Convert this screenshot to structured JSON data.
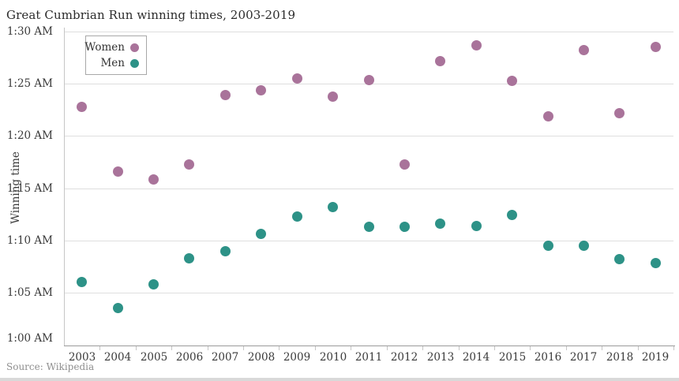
{
  "header": {
    "title": "Great Cumbrian Run winning times, 2003-2019"
  },
  "footer": {
    "source": "Source: Wikipedia"
  },
  "colors": {
    "women": "#a9739a",
    "men": "#2d9287",
    "gridline": "#dedede",
    "axis": "#9b9b9b"
  },
  "chart_data": {
    "type": "scatter",
    "title": "Great Cumbrian Run winning times, 2003-2019",
    "xlabel": "",
    "ylabel": "Winning time",
    "grid": "horizontal",
    "legend_position": "top-left",
    "x": [
      2003,
      2004,
      2005,
      2006,
      2007,
      2008,
      2009,
      2010,
      2011,
      2012,
      2013,
      2014,
      2015,
      2016,
      2017,
      2018,
      2019
    ],
    "ylim_minutes": [
      60,
      90
    ],
    "yticks": [
      {
        "value": 60,
        "label": "1:00 AM"
      },
      {
        "value": 65,
        "label": "1:05 AM"
      },
      {
        "value": 70,
        "label": "1:10 AM"
      },
      {
        "value": 75,
        "label": "1:15 AM"
      },
      {
        "value": 80,
        "label": "1:20 AM"
      },
      {
        "value": 85,
        "label": "1:25 AM"
      },
      {
        "value": 90,
        "label": "1:30 AM"
      }
    ],
    "series": [
      {
        "name": "Women",
        "color": "#a9739a",
        "values_minutes": [
          82.8,
          76.6,
          75.8,
          77.25,
          83.9,
          84.4,
          85.5,
          83.8,
          85.35,
          77.25,
          87.2,
          88.7,
          85.3,
          81.85,
          88.25,
          82.15,
          88.5
        ],
        "times": [
          "1:22:45",
          "1:16:35",
          "1:15:50",
          "1:17:15",
          "1:23:55",
          "1:24:25",
          "1:25:30",
          "1:23:50",
          "1:25:20",
          "1:17:15",
          "1:27:10",
          "1:28:40",
          "1:25:20",
          "1:21:50",
          "1:28:15",
          "1:22:10",
          "1:28:30"
        ]
      },
      {
        "name": "Men",
        "color": "#2d9287",
        "values_minutes": [
          66.0,
          63.55,
          65.8,
          68.3,
          68.95,
          70.65,
          72.3,
          73.2,
          71.3,
          71.3,
          71.6,
          71.35,
          72.4,
          69.5,
          69.5,
          68.2,
          67.8
        ],
        "times": [
          "1:06:00",
          "1:03:30",
          "1:05:50",
          "1:08:20",
          "1:08:55",
          "1:10:40",
          "1:12:15",
          "1:13:10",
          "1:11:20",
          "1:11:20",
          "1:11:35",
          "1:11:20",
          "1:12:25",
          "1:09:30",
          "1:09:30",
          "1:08:10",
          "1:07:50"
        ]
      }
    ]
  }
}
